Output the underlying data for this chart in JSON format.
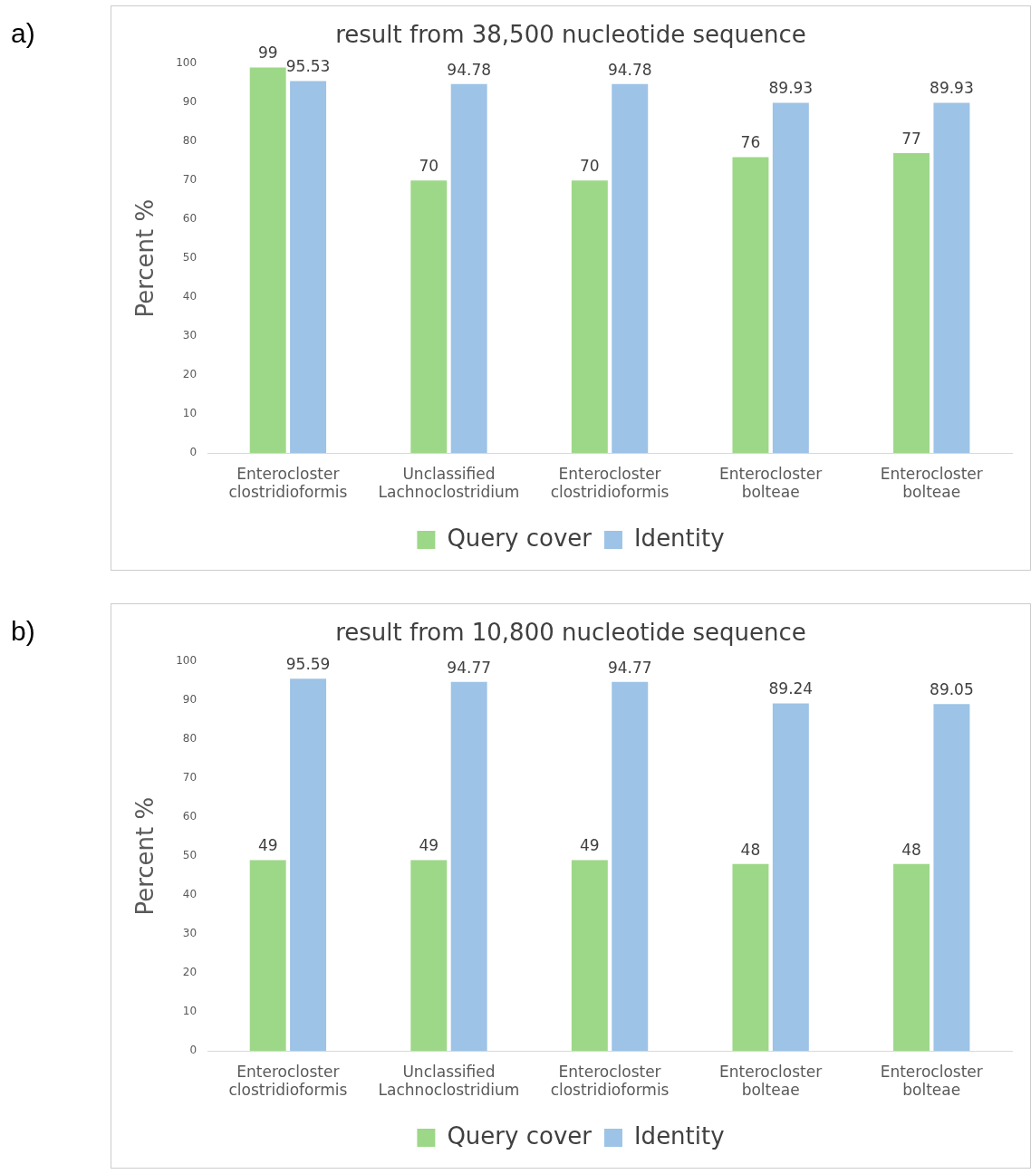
{
  "chart_data": [
    {
      "type": "bar",
      "title": "result from 38,500 nucleotide sequence",
      "ylabel": "Percent %",
      "annotations": [
        "a)"
      ],
      "categories": [
        "Enterocloster clostridioformis",
        "Unclassified Lachnoclostridium",
        "Enterocloster clostridioformis",
        "Enterocloster bolteae",
        "Enterocloster bolteae"
      ],
      "series": [
        {
          "name": "Query cover",
          "color": "#9dd888",
          "values": [
            99,
            70,
            70,
            76,
            77
          ]
        },
        {
          "name": "Identity",
          "color": "#9dc3e6",
          "values": [
            95.53,
            94.78,
            94.78,
            89.93,
            89.93
          ]
        }
      ],
      "ylim": [
        0,
        100
      ],
      "yticks": [
        0,
        10,
        20,
        30,
        40,
        50,
        60,
        70,
        80,
        90,
        100
      ],
      "grid": false,
      "legend": "bottom",
      "data_labels": true
    },
    {
      "type": "bar",
      "title": "result from 10,800 nucleotide sequence",
      "ylabel": "Percent %",
      "annotations": [
        "b)"
      ],
      "categories": [
        "Enterocloster clostridioformis",
        "Unclassified Lachnoclostridium",
        "Enterocloster clostridioformis",
        "Enterocloster bolteae",
        "Enterocloster bolteae"
      ],
      "series": [
        {
          "name": "Query cover",
          "color": "#9dd888",
          "values": [
            49,
            49,
            49,
            48,
            48
          ]
        },
        {
          "name": "Identity",
          "color": "#9dc3e6",
          "values": [
            95.59,
            94.77,
            94.77,
            89.24,
            89.05
          ]
        }
      ],
      "ylim": [
        0,
        100
      ],
      "yticks": [
        0,
        10,
        20,
        30,
        40,
        50,
        60,
        70,
        80,
        90,
        100
      ],
      "grid": false,
      "legend": "bottom",
      "data_labels": true
    }
  ]
}
